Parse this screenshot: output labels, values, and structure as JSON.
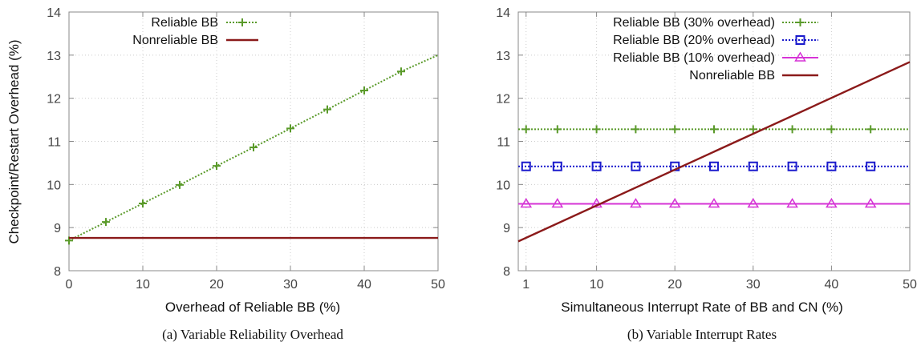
{
  "colors": {
    "reliable": "#5a9a2a",
    "nonreliable": "#8b1a1a",
    "blue": "#1a1acc",
    "magenta": "#d633d6",
    "grid": "#cccccc",
    "axis": "#888888"
  },
  "chart_data": [
    {
      "type": "line",
      "title": "",
      "caption": "(a) Variable Reliability Overhead",
      "xlabel": "Overhead of Reliable BB (%)",
      "ylabel": "Checkpoint/Restart Overhead (%)",
      "xlim": [
        0,
        50
      ],
      "ylim": [
        8,
        14
      ],
      "xticks": [
        0,
        10,
        20,
        30,
        40,
        50
      ],
      "yticks": [
        8,
        9,
        10,
        11,
        12,
        13,
        14
      ],
      "grid": true,
      "legend_position": "top-left",
      "series": [
        {
          "name": "Reliable BB",
          "color": "#5a9a2a",
          "style": "dotted",
          "marker": "plus",
          "x": [
            0,
            5,
            10,
            15,
            20,
            25,
            30,
            35,
            40,
            45,
            50
          ],
          "y": [
            8.7,
            9.13,
            9.56,
            9.99,
            10.43,
            10.86,
            11.3,
            11.74,
            12.18,
            12.62,
            13.0
          ],
          "marker_x": [
            0,
            5,
            10,
            15,
            20,
            25,
            30,
            35,
            40,
            45
          ]
        },
        {
          "name": "Nonreliable BB",
          "color": "#8b1a1a",
          "style": "solid",
          "marker": "none",
          "x": [
            0,
            50
          ],
          "y": [
            8.76,
            8.76
          ]
        }
      ]
    },
    {
      "type": "line",
      "title": "",
      "caption": "(b) Variable Interrupt Rates",
      "xlabel": "Simultaneous Interrupt Rate of BB and CN (%)",
      "ylabel": "",
      "xlim": [
        0,
        50
      ],
      "ylim": [
        8,
        14
      ],
      "xticks": [
        1,
        10,
        20,
        30,
        40,
        50
      ],
      "yticks": [
        8,
        9,
        10,
        11,
        12,
        13,
        14
      ],
      "grid": true,
      "legend_position": "top-left",
      "series": [
        {
          "name": "Reliable BB (30% overhead)",
          "color": "#5a9a2a",
          "style": "dotted",
          "marker": "plus",
          "x": [
            0,
            50
          ],
          "y": [
            11.28,
            11.28
          ],
          "marker_x": [
            1,
            5,
            10,
            15,
            20,
            25,
            30,
            35,
            40,
            45
          ]
        },
        {
          "name": "Reliable BB (20% overhead)",
          "color": "#1a1acc",
          "style": "dotted",
          "marker": "square",
          "x": [
            0,
            50
          ],
          "y": [
            10.42,
            10.42
          ],
          "marker_x": [
            1,
            5,
            10,
            15,
            20,
            25,
            30,
            35,
            40,
            45
          ]
        },
        {
          "name": "Reliable BB (10% overhead)",
          "color": "#d633d6",
          "style": "solid",
          "marker": "triangle",
          "x": [
            0,
            50
          ],
          "y": [
            9.55,
            9.55
          ],
          "marker_x": [
            1,
            5,
            10,
            15,
            20,
            25,
            30,
            35,
            40,
            45
          ]
        },
        {
          "name": "Nonreliable BB",
          "color": "#8b1a1a",
          "style": "solid",
          "marker": "none",
          "x": [
            0,
            50
          ],
          "y": [
            8.68,
            12.84
          ]
        }
      ]
    }
  ]
}
